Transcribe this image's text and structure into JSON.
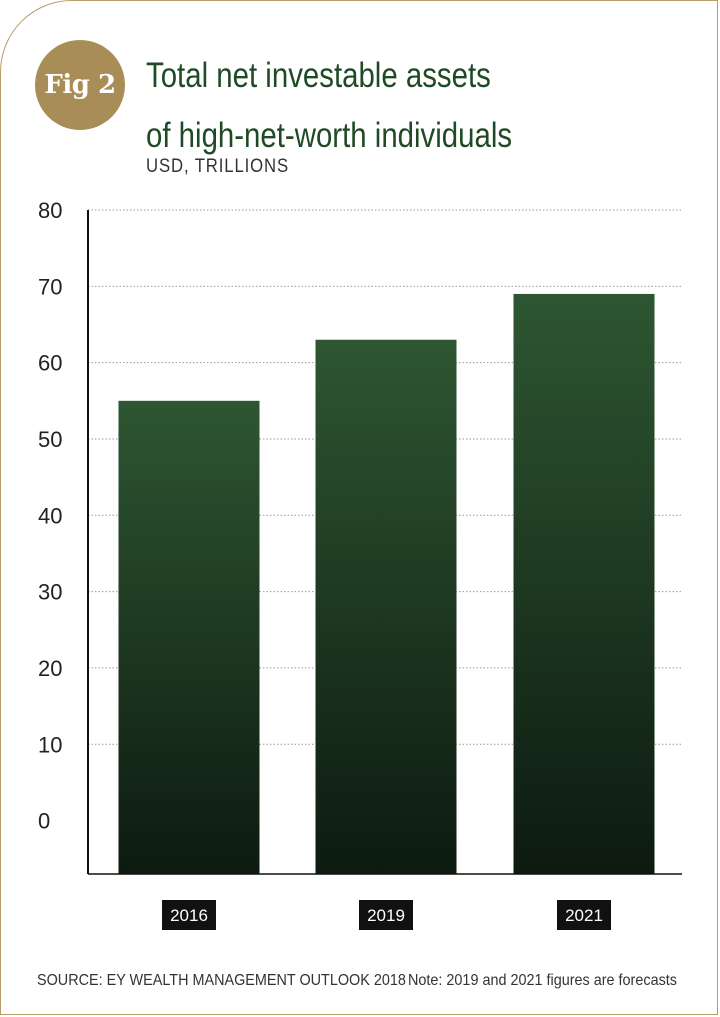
{
  "figure": {
    "badge": "Fig 2",
    "title_line1": "Total net investable assets",
    "title_line2": "of high-net-worth individuals",
    "subtitle": "USD, TRILLIONS",
    "source": "SOURCE: EY WEALTH MANAGEMENT OUTLOOK 2018",
    "note": "Note: 2019 and 2021 figures are forecasts"
  },
  "colors": {
    "bar_top": "#2e5632",
    "bar_bottom": "#0d1a10",
    "gold": "#a88d57",
    "title": "#1f4a25"
  },
  "chart_data": {
    "type": "bar",
    "categories": [
      "2016",
      "2019",
      "2021"
    ],
    "values": [
      55,
      63,
      69
    ],
    "yticks": [
      0,
      10,
      20,
      30,
      40,
      50,
      60,
      70,
      80
    ],
    "ylim": [
      -7,
      80
    ],
    "title": "Total net investable assets of high-net-worth individuals",
    "ylabel": "USD, TRILLIONS",
    "xlabel": "",
    "grid": true,
    "legend": "none"
  }
}
